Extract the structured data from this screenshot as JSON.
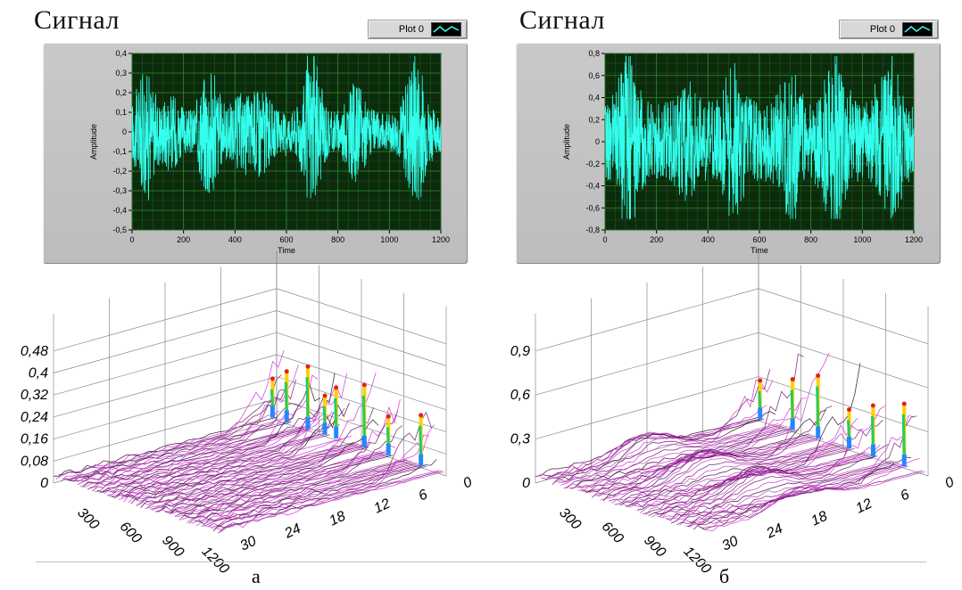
{
  "panels": [
    {
      "id": "a",
      "title": "Сигнал",
      "legend_label": "Plot 0",
      "caption": "а",
      "chart_data": {
        "type": "line",
        "title": "Сигнал",
        "xlabel": "Time",
        "ylabel": "Amplitude",
        "xlim": [
          0,
          1200
        ],
        "ylim": [
          -0.5,
          0.4
        ],
        "xticks": [
          "0",
          "200",
          "400",
          "600",
          "800",
          "1000",
          "1200"
        ],
        "yticks": [
          "0,4",
          "0,3",
          "0,2",
          "0,1",
          "0",
          "-0,1",
          "-0,2",
          "-0,3",
          "-0,4",
          "-0,5"
        ],
        "series": [
          {
            "name": "Plot 0",
            "color": "#33ffee"
          }
        ],
        "bursts": [
          {
            "x": 50,
            "peak": 0.28
          },
          {
            "x": 150,
            "peak": 0.16
          },
          {
            "x": 300,
            "peak": 0.32
          },
          {
            "x": 420,
            "peak": 0.16
          },
          {
            "x": 500,
            "peak": 0.2
          },
          {
            "x": 700,
            "peak": 0.36
          },
          {
            "x": 870,
            "peak": 0.22
          },
          {
            "x": 1100,
            "peak": 0.38
          }
        ],
        "min": -0.43,
        "noise": 0.1
      },
      "surface": {
        "zticks": [
          "0,48",
          "0,4",
          "0,32",
          "0,24",
          "0,16",
          "0,08",
          "0"
        ],
        "xticks": [
          "300",
          "600",
          "900",
          "1200"
        ],
        "yticks": [
          "0",
          "6",
          "12",
          "18",
          "24",
          "30"
        ]
      }
    },
    {
      "id": "b",
      "title": "Сигнал",
      "legend_label": "Plot 0",
      "caption": "б",
      "chart_data": {
        "type": "line",
        "title": "Сигнал",
        "xlabel": "Time",
        "ylabel": "Amplitude",
        "xlim": [
          0,
          1200
        ],
        "ylim": [
          -0.8,
          0.8
        ],
        "xticks": [
          "0",
          "200",
          "400",
          "600",
          "800",
          "1000",
          "1200"
        ],
        "yticks": [
          "0,8",
          "0,6",
          "0,4",
          "0,2",
          "0",
          "-0,2",
          "-0,4",
          "-0,6",
          "-0,8"
        ],
        "series": [
          {
            "name": "Plot 0",
            "color": "#33ffee"
          }
        ],
        "bursts": [
          {
            "x": 90,
            "peak": 0.72
          },
          {
            "x": 320,
            "peak": 0.45
          },
          {
            "x": 500,
            "peak": 0.6
          },
          {
            "x": 720,
            "peak": 0.6
          },
          {
            "x": 890,
            "peak": 0.74
          },
          {
            "x": 1110,
            "peak": 0.68
          }
        ],
        "min": -0.7,
        "noise": 0.36
      },
      "surface": {
        "zticks": [
          "0,9",
          "0,6",
          "0,3",
          "0"
        ],
        "xticks": [
          "300",
          "600",
          "900",
          "1200"
        ],
        "yticks": [
          "0",
          "6",
          "12",
          "18",
          "24",
          "30"
        ]
      }
    }
  ],
  "colors": {
    "plot_bg": "#0c2b0c",
    "grid": "#2f8a2f",
    "trace": "#33ffee",
    "frame": "#c4c4c4"
  }
}
